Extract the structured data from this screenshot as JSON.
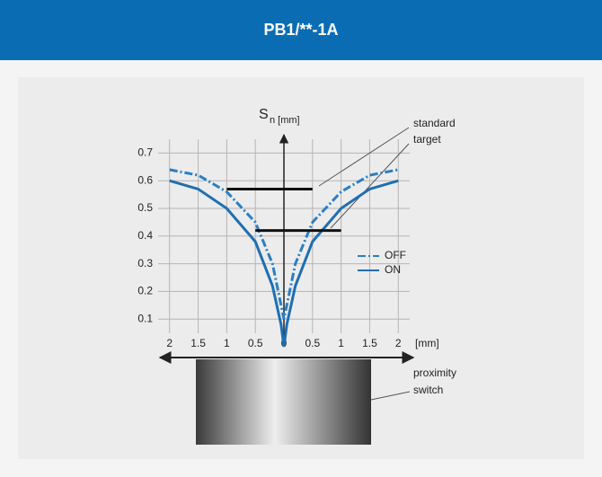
{
  "header": {
    "title": "PB1/**-1A"
  },
  "chart_data": {
    "type": "line",
    "y_label": "S",
    "y_label_sub": "n [mm]",
    "x_unit": "[mm]",
    "xlim": [
      -2.2,
      2.2
    ],
    "ylim": [
      0,
      0.75
    ],
    "xticks": [
      {
        "value": -2,
        "label": "2"
      },
      {
        "value": -1.5,
        "label": "1.5"
      },
      {
        "value": -1,
        "label": "1"
      },
      {
        "value": -0.5,
        "label": "0.5"
      },
      0,
      0.5,
      1,
      1.5,
      2
    ],
    "yticks": [
      0.1,
      0.2,
      0.3,
      0.4,
      0.5,
      0.6,
      0.7
    ],
    "grid": true,
    "x": [
      -2,
      -1.5,
      -1,
      -0.5,
      -0.2,
      -0.05,
      0,
      0.05,
      0.2,
      0.5,
      1,
      1.5,
      2
    ],
    "series": [
      {
        "name": "OFF",
        "color": "#2a7fc4",
        "dash": "dashdot",
        "values": [
          0.64,
          0.62,
          0.56,
          0.45,
          0.3,
          0.15,
          0.1,
          0.15,
          0.3,
          0.45,
          0.56,
          0.62,
          0.64
        ]
      },
      {
        "name": "ON",
        "color": "#1f6fb0",
        "dash": "solid",
        "values": [
          0.6,
          0.57,
          0.5,
          0.38,
          0.22,
          0.08,
          0,
          0.08,
          0.22,
          0.38,
          0.5,
          0.57,
          0.6
        ]
      }
    ],
    "markers": [
      {
        "x": [
          -1,
          0.5
        ],
        "y": [
          0.57,
          0.57
        ]
      },
      {
        "x": [
          -0.5,
          1
        ],
        "y": [
          0.42,
          0.42
        ]
      }
    ],
    "annotations": {
      "standard_target": [
        "standard",
        "target"
      ],
      "proximity_switch": [
        "proximity",
        "switch"
      ]
    }
  }
}
